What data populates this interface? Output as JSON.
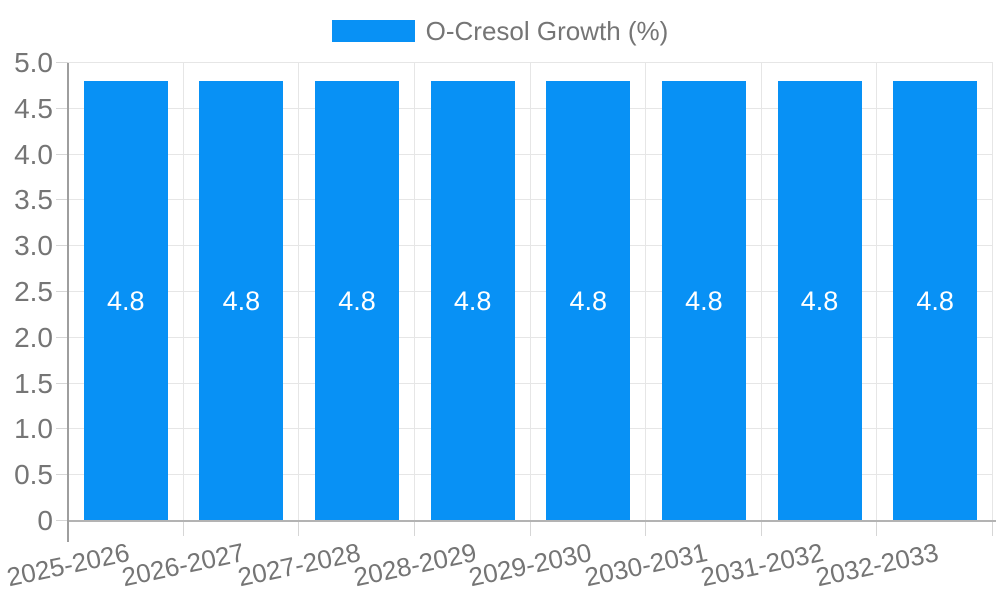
{
  "legend": {
    "label": "O-Cresol Growth (%)"
  },
  "chart_data": {
    "type": "bar",
    "title": "",
    "legend_position": "top",
    "categories": [
      "2025-2026",
      "2026-2027",
      "2027-2028",
      "2028-2029",
      "2029-2030",
      "2030-2031",
      "2031-2032",
      "2032-2033"
    ],
    "series": [
      {
        "name": "O-Cresol Growth (%)",
        "values": [
          4.8,
          4.8,
          4.8,
          4.8,
          4.8,
          4.8,
          4.8,
          4.8
        ],
        "labels": [
          "4.8",
          "4.8",
          "4.8",
          "4.8",
          "4.8",
          "4.8",
          "4.8",
          "4.8"
        ]
      }
    ],
    "xlabel": "",
    "ylabel": "",
    "ylim": [
      0,
      5
    ],
    "ytick_step": 0.5,
    "ytick_labels": [
      "0",
      "0.5",
      "1.0",
      "1.5",
      "2.0",
      "2.5",
      "3.0",
      "3.5",
      "4.0",
      "4.5",
      "5.0"
    ],
    "grid": true,
    "colors": {
      "bar": "#0891f5",
      "axis_text": "#757575",
      "gridline": "#e6e6e6",
      "tick": "#d6d6d6",
      "axis_line": "#9e9e9e",
      "baseline": "#b3b3b3",
      "value_label": "#ffffff",
      "background": "#ffffff"
    }
  }
}
